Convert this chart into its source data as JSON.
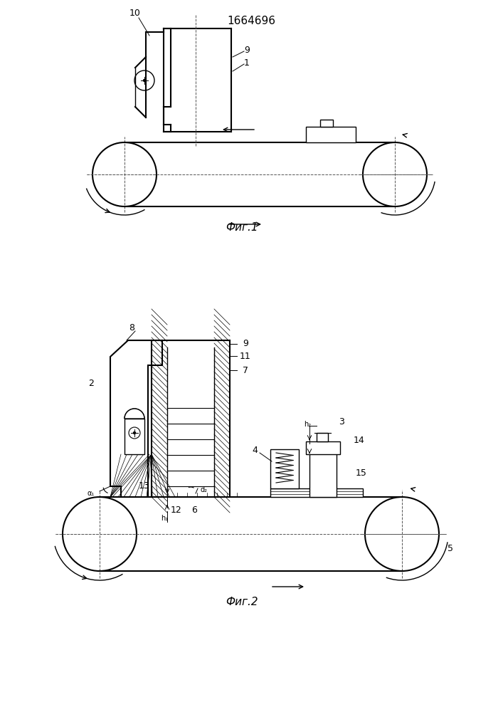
{
  "title": "1664696",
  "fig1_caption": "Фиг.1",
  "fig2_caption": "Фиг.2",
  "bg_color": "#ffffff",
  "line_color": "#000000",
  "hatch_color": "#000000"
}
